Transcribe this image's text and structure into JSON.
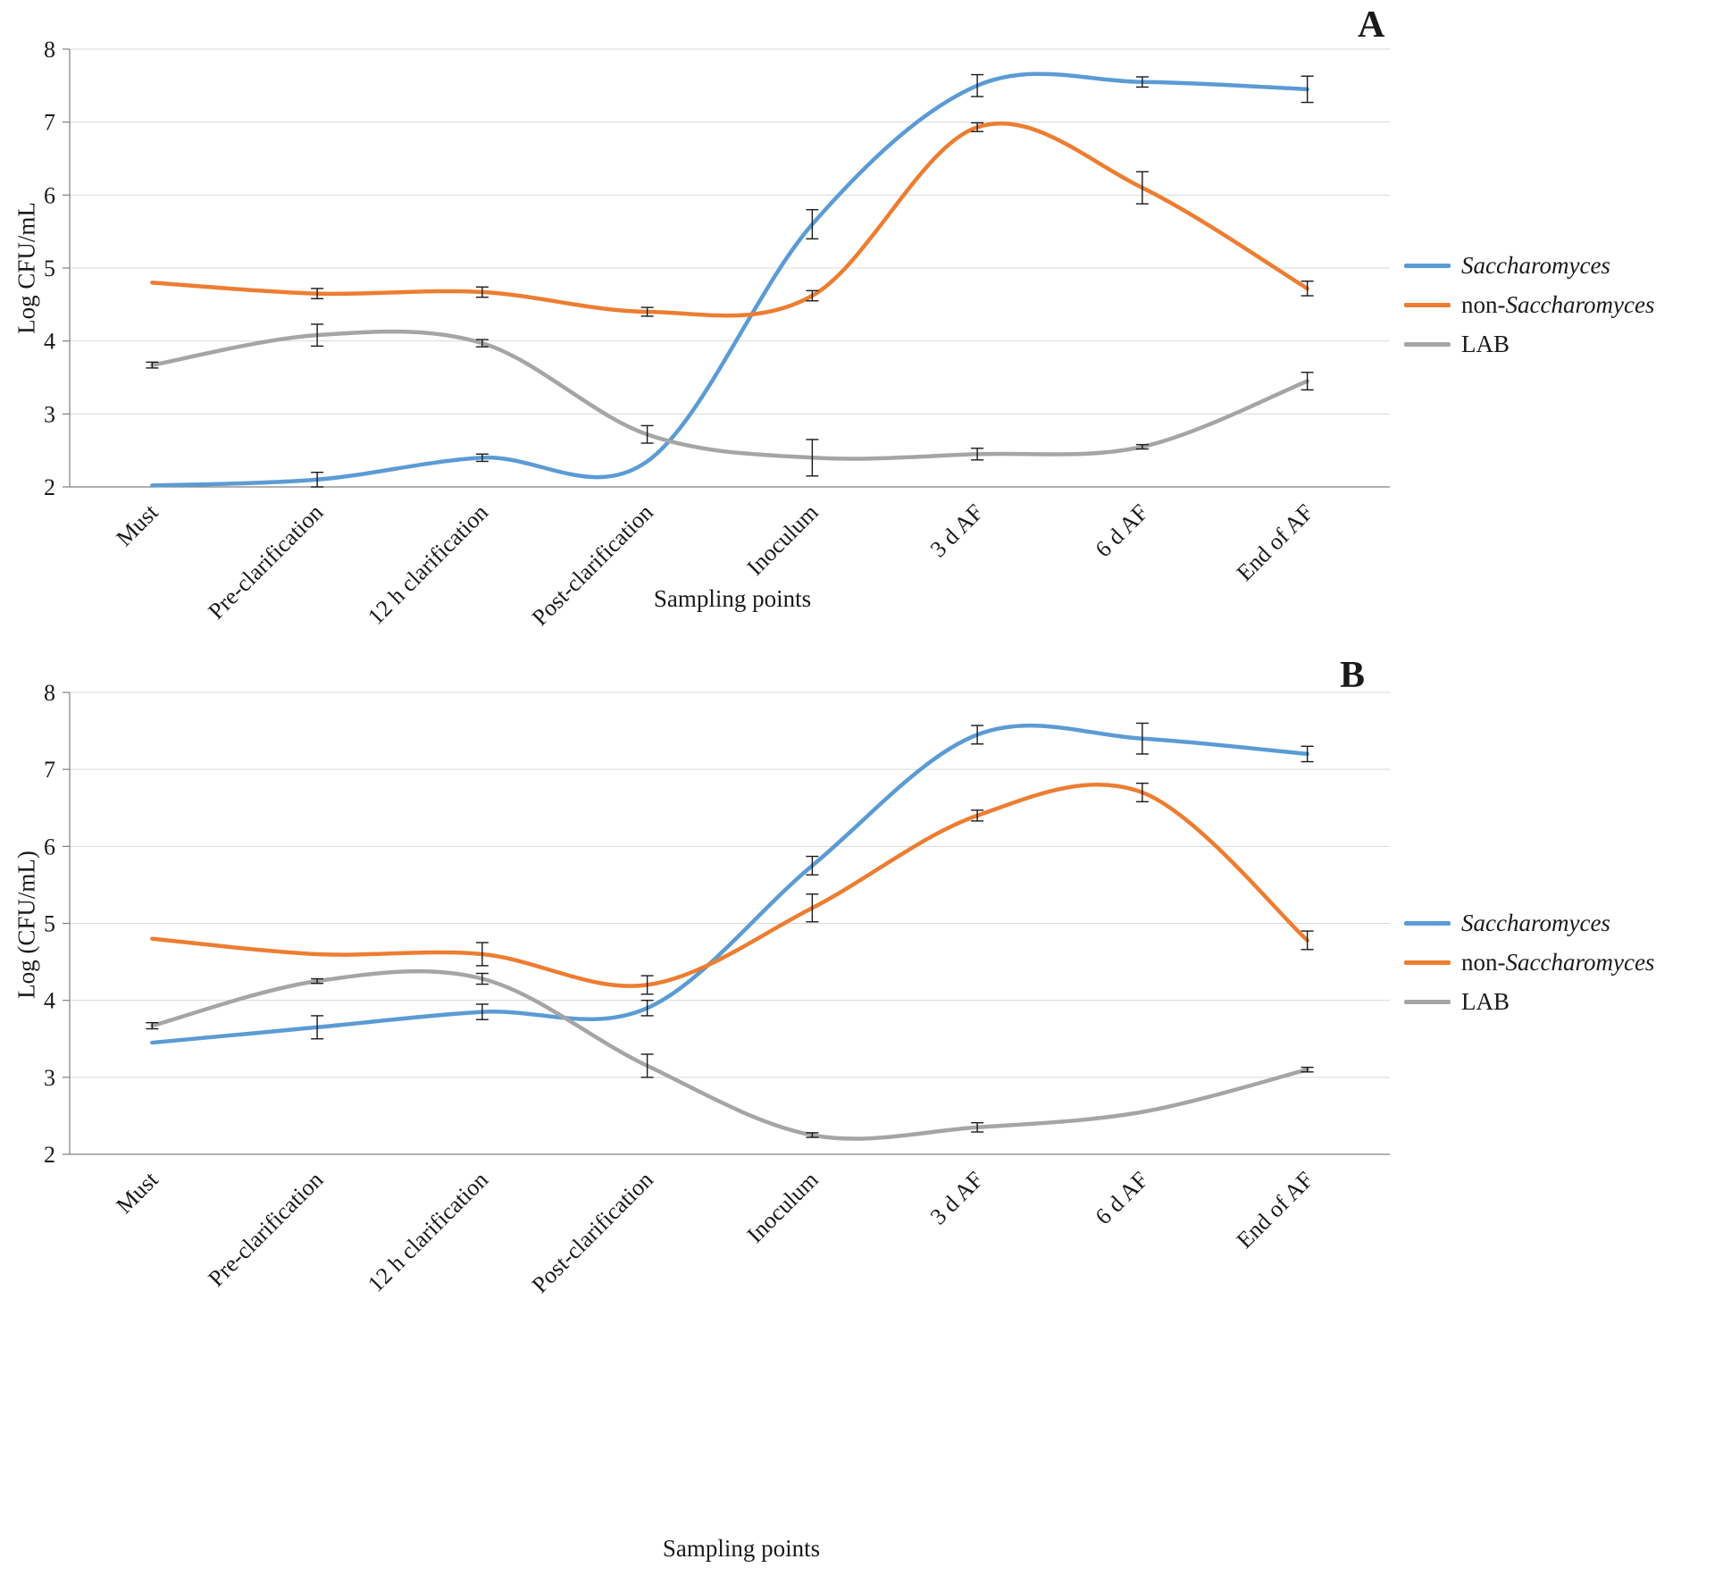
{
  "page": {
    "background": "#ffffff"
  },
  "axis_colors": {
    "grid": "#d9d9d9",
    "axis": "#808080",
    "error_bar": "#1a1a1a"
  },
  "chart_data": [
    {
      "type": "line",
      "panel_letter": "A",
      "ylabel": "Log CFU/mL",
      "xlabel": "Sampling points",
      "ylim": [
        2,
        8
      ],
      "y_ticks": [
        2,
        3,
        4,
        5,
        6,
        7,
        8
      ],
      "grid": true,
      "legend_position": "right",
      "categories": [
        "Must",
        "Pre-clarification",
        "12 h clarification",
        "Post-clarification",
        "Inoculum",
        "3 d AF",
        "6 d AF",
        "End of AF"
      ],
      "series": [
        {
          "name_plain": "",
          "name_italic": "Saccharomyces",
          "color": "#5B9BD5",
          "values": [
            2.02,
            2.1,
            2.4,
            2.35,
            5.6,
            7.5,
            7.55,
            7.45
          ],
          "errors": [
            0,
            0.1,
            0.05,
            0,
            0.2,
            0.15,
            0.07,
            0.18
          ]
        },
        {
          "name_plain": "non-",
          "name_italic": "Saccharomyces",
          "color": "#ED7D31",
          "values": [
            4.8,
            4.65,
            4.67,
            4.4,
            4.62,
            6.93,
            6.1,
            4.72
          ],
          "errors": [
            0,
            0.07,
            0.07,
            0.06,
            0.07,
            0.06,
            0.22,
            0.1
          ]
        },
        {
          "name_plain": "LAB",
          "name_italic": "",
          "color": "#A5A5A5",
          "values": [
            3.67,
            4.08,
            3.97,
            2.72,
            2.4,
            2.45,
            2.55,
            3.45
          ],
          "errors": [
            0.04,
            0.15,
            0.05,
            0.12,
            0.25,
            0.08,
            0.03,
            0.12
          ]
        }
      ]
    },
    {
      "type": "line",
      "panel_letter": "B",
      "ylabel": "Log (CFU/mL)",
      "xlabel": "Sampling points",
      "ylim": [
        2,
        8
      ],
      "y_ticks": [
        2,
        3,
        4,
        5,
        6,
        7,
        8
      ],
      "grid": true,
      "legend_position": "right",
      "categories": [
        "Must",
        "Pre-clarification",
        "12 h clarification",
        "Post-clarification",
        "Inoculum",
        "3 d AF",
        "6 d AF",
        "End of AF"
      ],
      "series": [
        {
          "name_plain": "",
          "name_italic": "Saccharomyces",
          "color": "#5B9BD5",
          "values": [
            3.45,
            3.65,
            3.85,
            3.9,
            5.75,
            7.45,
            7.4,
            7.2
          ],
          "errors": [
            0,
            0.15,
            0.1,
            0.1,
            0.12,
            0.12,
            0.2,
            0.1
          ]
        },
        {
          "name_plain": "non-",
          "name_italic": "Saccharomyces",
          "color": "#ED7D31",
          "values": [
            4.8,
            4.6,
            4.6,
            4.2,
            5.2,
            6.4,
            6.7,
            4.78
          ],
          "errors": [
            0,
            0,
            0.15,
            0.12,
            0.18,
            0.07,
            0.12,
            0.12
          ]
        },
        {
          "name_plain": "LAB",
          "name_italic": "",
          "color": "#A5A5A5",
          "values": [
            3.67,
            4.25,
            4.28,
            3.15,
            2.25,
            2.35,
            2.55,
            3.1
          ],
          "errors": [
            0.04,
            0.03,
            0.07,
            0.15,
            0.03,
            0.06,
            0,
            0.03
          ]
        }
      ]
    }
  ]
}
